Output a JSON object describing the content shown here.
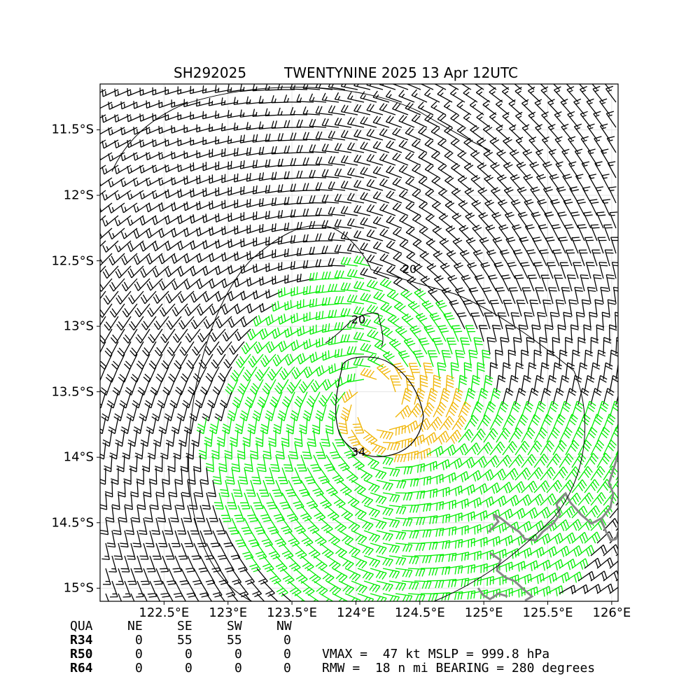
{
  "title": {
    "storm_id": "SH292025",
    "storm_info": "TWENTYNINE 2025 13 Apr 12UTC"
  },
  "map": {
    "lon_range": [
      122.0,
      126.05
    ],
    "lat_range": [
      -15.1,
      -11.15
    ],
    "lat_ticks": [
      {
        "value": -11.5,
        "label": "11.5°S"
      },
      {
        "value": -12.0,
        "label": "12°S"
      },
      {
        "value": -12.5,
        "label": "12.5°S"
      },
      {
        "value": -13.0,
        "label": "13°S"
      },
      {
        "value": -13.5,
        "label": "13.5°S"
      },
      {
        "value": -14.0,
        "label": "14°S"
      },
      {
        "value": -14.5,
        "label": "14.5°S"
      },
      {
        "value": -15.0,
        "label": "15°S"
      }
    ],
    "lon_ticks": [
      {
        "value": 122.5,
        "label": "122.5°E"
      },
      {
        "value": 123.0,
        "label": "123°E"
      },
      {
        "value": 123.5,
        "label": "123.5°E"
      },
      {
        "value": 124.0,
        "label": "124°E"
      },
      {
        "value": 124.5,
        "label": "124.5°E"
      },
      {
        "value": 125.0,
        "label": "125°E"
      },
      {
        "value": 125.5,
        "label": "125.5°E"
      },
      {
        "value": 126.0,
        "label": "126°E"
      }
    ],
    "storm_center": {
      "lon": 124.15,
      "lat": -13.6
    },
    "contour_labels": [
      "20",
      "20",
      "34"
    ],
    "colors": {
      "barb_weak": "#000000",
      "barb_34kt": "#00ee00",
      "barb_50kt": "#f0b400",
      "coastline": "#888888",
      "contour": "#000000"
    }
  },
  "radii_table": {
    "header": [
      "QUA",
      "NE",
      "SE",
      "SW",
      "NW"
    ],
    "rows": [
      {
        "label": "R34",
        "values": [
          "0",
          "55",
          "55",
          "0"
        ]
      },
      {
        "label": "R50",
        "values": [
          "0",
          "0",
          "0",
          "0"
        ]
      },
      {
        "label": "R64",
        "values": [
          "0",
          "0",
          "0",
          "0"
        ]
      }
    ]
  },
  "summary": {
    "line1": "VMAX =  47 kt MSLP = 999.8 hPa",
    "line2": "RMW =  18 n mi BEARING = 280 degrees"
  }
}
